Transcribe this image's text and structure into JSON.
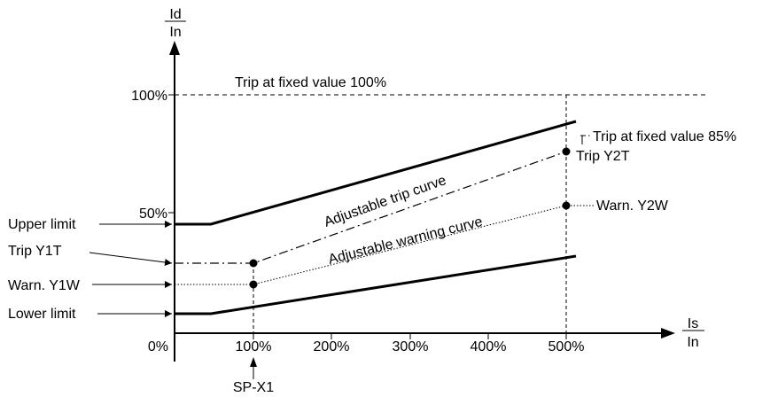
{
  "axes": {
    "y_num": "Id",
    "y_den": "In",
    "x_num": "Is",
    "x_den": "In"
  },
  "y_ticks": [
    "100%",
    "50%"
  ],
  "x_ticks": [
    "0%",
    "100%",
    "200%",
    "300%",
    "400%",
    "500%"
  ],
  "labels": {
    "trip_fixed_100": "Trip at fixed value 100%",
    "trip_fixed_85": "Trip at fixed value 85%",
    "trip_y2t": "Trip Y2T",
    "warn_y2w": "Warn. Y2W",
    "adjustable_trip_curve": "Adjustable trip curve",
    "adjustable_warning_curve": "Adjustable warning curve",
    "upper_limit": "Upper limit",
    "trip_y1t": "Trip Y1T",
    "warn_y1w": "Warn. Y1W",
    "lower_limit": "Lower limit",
    "sp_x1": "SP-X1"
  }
}
